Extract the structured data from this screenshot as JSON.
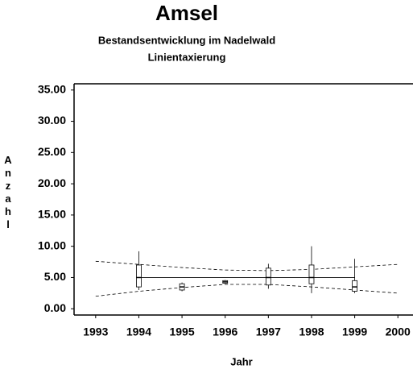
{
  "chart_data": {
    "type": "box",
    "title": "Amsel",
    "subtitle": "Bestandsentwicklung im Nadelwald",
    "subtitle2": "Linientaxierung",
    "y_label": "Anzahl",
    "x_label": "Jahr",
    "xlim": [
      1992.5,
      2000.35
    ],
    "xticks": [
      1993,
      1994,
      1995,
      1996,
      1997,
      1998,
      1999,
      2000
    ],
    "ylim": [
      -1,
      36
    ],
    "yticks": [
      {
        "value": 0,
        "label": "0.00"
      },
      {
        "value": 5,
        "label": "5.00"
      },
      {
        "value": 10,
        "label": "10.00"
      },
      {
        "value": 15,
        "label": "15.00"
      },
      {
        "value": 20,
        "label": "20.00"
      },
      {
        "value": 25,
        "label": "25.00"
      },
      {
        "value": 30,
        "label": "30.00"
      },
      {
        "value": 35,
        "label": "35.00"
      }
    ],
    "color": "#000000",
    "boxes": {
      "x": [
        1994,
        1995,
        1996,
        1997,
        1998,
        1999
      ],
      "whisker_low": [
        3,
        2.8,
        4,
        3.2,
        2.5,
        2.5
      ],
      "q1": [
        3.5,
        3,
        4.1,
        3.8,
        4,
        2.8
      ],
      "median": [
        5,
        3.5,
        4.3,
        5,
        5,
        3.5
      ],
      "q3": [
        7,
        4,
        4.5,
        6.5,
        7,
        4.5
      ],
      "whisker_high": [
        9.2,
        4.2,
        4.6,
        7.2,
        10,
        8
      ]
    },
    "fit": {
      "x": [
        1994,
        1999
      ],
      "y": [
        5,
        5
      ]
    },
    "upper_band": {
      "x": [
        1993,
        1994,
        1995,
        1996,
        1997,
        1998,
        1999,
        2000
      ],
      "y": [
        7.6,
        7.1,
        6.6,
        6.2,
        6.1,
        6.3,
        6.7,
        7.1
      ]
    },
    "lower_band": {
      "x": [
        1993,
        1994,
        1995,
        1996,
        1997,
        1998,
        1999,
        2000
      ],
      "y": [
        2,
        2.8,
        3.4,
        3.9,
        3.9,
        3.5,
        3,
        2.5
      ]
    }
  }
}
